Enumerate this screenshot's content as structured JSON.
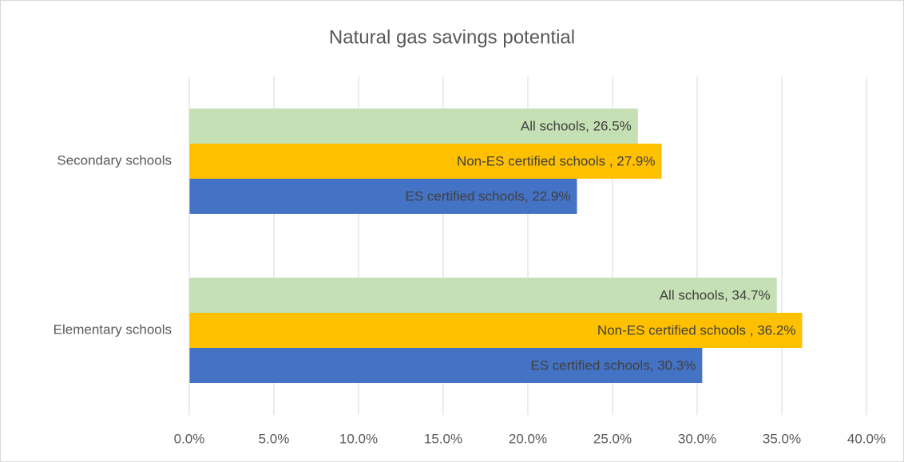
{
  "chart_data": {
    "type": "bar",
    "orientation": "horizontal",
    "title": "Natural gas savings potential",
    "categories": [
      "Secondary schools",
      "Elementary schools"
    ],
    "series": [
      {
        "color": "#c5e0b4",
        "values": [
          26.5,
          34.7
        ],
        "value_labels": [
          "All schools, 26.5%",
          "All schools, 34.7%"
        ]
      },
      {
        "color": "#ffc000",
        "values": [
          27.9,
          36.2
        ],
        "value_labels": [
          "Non-ES certified schools , 27.9%",
          "Non-ES certified schools , 36.2%"
        ]
      },
      {
        "color": "#4472c4",
        "values": [
          22.9,
          30.3
        ],
        "value_labels": [
          "ES certified schools, 22.9%",
          "ES certified schools, 30.3%"
        ]
      }
    ],
    "xlim": [
      0,
      40
    ],
    "xticks": [
      {
        "value": 0,
        "label": "0.0%"
      },
      {
        "value": 5,
        "label": "5.0%"
      },
      {
        "value": 10,
        "label": "10.0%"
      },
      {
        "value": 15,
        "label": "15.0%"
      },
      {
        "value": 20,
        "label": "20.0%"
      },
      {
        "value": 25,
        "label": "25.0%"
      },
      {
        "value": 30,
        "label": "30.0%"
      },
      {
        "value": 35,
        "label": "35.0%"
      },
      {
        "value": 40,
        "label": "40.0%"
      }
    ],
    "grid": true
  }
}
